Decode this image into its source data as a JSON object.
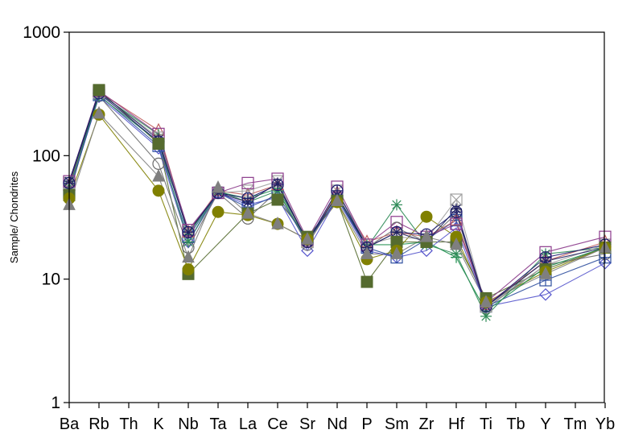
{
  "chart_data": {
    "type": "line",
    "title": "",
    "xlabel": "",
    "ylabel": "Sample/ Chondrites",
    "yscale": "log",
    "ylim": [
      1,
      1000
    ],
    "yticks": [
      {
        "value": 1,
        "label": "1"
      },
      {
        "value": 10,
        "label": "10"
      },
      {
        "value": 100,
        "label": "100"
      },
      {
        "value": 1000,
        "label": "1000"
      }
    ],
    "categories": [
      "Ba",
      "Rb",
      "Th",
      "K",
      "Nb",
      "Ta",
      "La",
      "Ce",
      "Sr",
      "Nd",
      "P",
      "Sm",
      "Zr",
      "Hf",
      "Ti",
      "Tb",
      "Y",
      "Tm",
      "Yb"
    ],
    "grid": false,
    "legend": "none",
    "series": [
      {
        "color": "#556B2F",
        "marker": "square-filled",
        "values": [
          48,
          340,
          null,
          125,
          11,
          null,
          34,
          44,
          22,
          43,
          9.5,
          20,
          20,
          20,
          7,
          null,
          12,
          null,
          18
        ]
      },
      {
        "color": "#808000",
        "marker": "circle-filled",
        "values": [
          45,
          215,
          null,
          52,
          12,
          35,
          33,
          28,
          21,
          42,
          14.5,
          17,
          32,
          22,
          6.5,
          null,
          11.5,
          null,
          18
        ]
      },
      {
        "color": "#7F7F7F",
        "marker": "triangle-filled",
        "values": [
          40,
          220,
          null,
          68,
          15,
          55,
          34,
          28,
          21,
          43,
          16,
          16,
          22,
          19,
          6.5,
          null,
          11,
          null,
          18
        ]
      },
      {
        "color": "#5555CC",
        "marker": "diamond-open",
        "values": [
          52,
          300,
          null,
          115,
          20,
          50,
          40,
          46,
          17,
          45,
          17,
          15,
          17,
          26,
          6,
          null,
          7.5,
          null,
          13.5
        ]
      },
      {
        "color": "#6A6A6A",
        "marker": "circle-open",
        "values": [
          55,
          305,
          null,
          86,
          18,
          50,
          31,
          52,
          19,
          46,
          18,
          26,
          20,
          34,
          5.8,
          null,
          13,
          null,
          16
        ]
      },
      {
        "color": "#2F4F9F",
        "marker": "square-plus",
        "values": [
          50,
          310,
          null,
          120,
          22,
          50,
          38,
          48,
          20,
          45,
          18,
          15,
          21,
          30,
          6,
          null,
          9.8,
          null,
          15
        ]
      },
      {
        "color": "#1E8F4E",
        "marker": "plus",
        "values": [
          55,
          320,
          null,
          148,
          23,
          51,
          45,
          54,
          21,
          47,
          19,
          19,
          20,
          15,
          5.5,
          null,
          12.5,
          null,
          18
        ]
      },
      {
        "color": "#2E8B57",
        "marker": "asterisk",
        "values": [
          58,
          305,
          null,
          130,
          20,
          52,
          42,
          52,
          20,
          48,
          18,
          40,
          19,
          16,
          5,
          null,
          16,
          null,
          18
        ]
      },
      {
        "color": "#C06060",
        "marker": "triangle-open",
        "values": [
          58,
          330,
          null,
          160,
          24,
          52,
          48,
          58,
          20,
          50,
          20,
          24,
          22,
          30,
          6.2,
          null,
          14,
          null,
          20
        ]
      },
      {
        "color": "#A0A0A0",
        "marker": "square-x",
        "values": [
          60,
          325,
          null,
          140,
          25,
          50,
          52,
          62,
          20,
          52,
          19,
          22,
          21,
          44,
          6,
          null,
          13,
          null,
          19
        ]
      },
      {
        "color": "#8B3A8B",
        "marker": "square-open",
        "values": [
          62,
          335,
          null,
          150,
          25,
          50,
          60,
          65,
          21,
          56,
          19,
          29,
          22,
          28,
          6.5,
          null,
          16.5,
          null,
          22
        ]
      },
      {
        "color": "#1A1A6E",
        "marker": "circle-plus",
        "values": [
          60,
          320,
          null,
          130,
          24,
          50,
          45,
          58,
          20,
          52,
          18,
          24,
          23,
          35,
          6,
          null,
          15,
          null,
          19
        ]
      },
      {
        "color": "#202060",
        "marker": "asterisk",
        "values": [
          62,
          330,
          null,
          135,
          24,
          50,
          42,
          60,
          20,
          48,
          18,
          24,
          20,
          37,
          6,
          null,
          14,
          null,
          18
        ]
      }
    ]
  }
}
